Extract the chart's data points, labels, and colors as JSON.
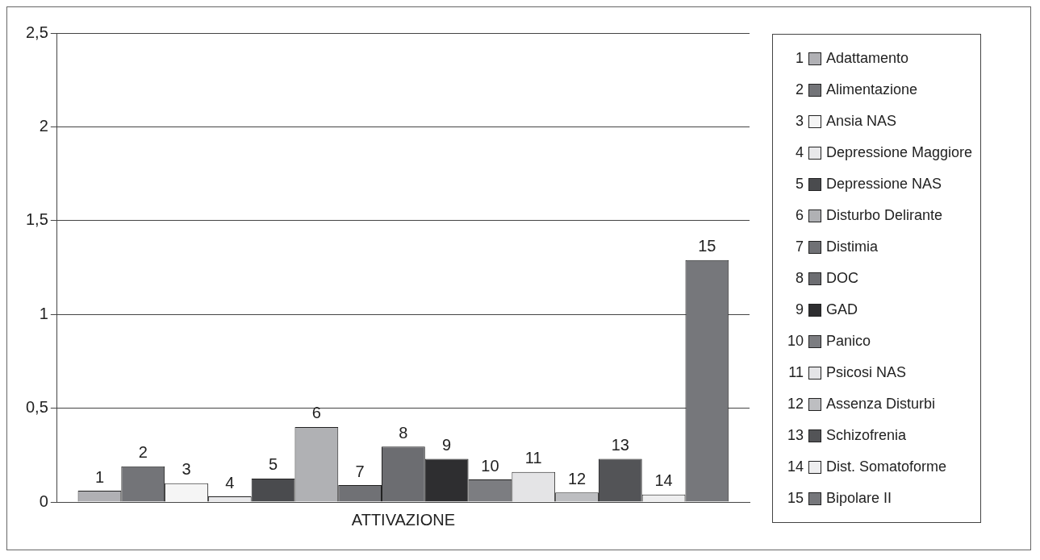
{
  "chart_data": {
    "type": "bar",
    "categories": [
      "ATTIVAZIONE"
    ],
    "ylim": [
      0,
      2.5
    ],
    "yticks": [
      0,
      {
        "value": 0.5,
        "label": "0,5"
      },
      1,
      {
        "value": 1.5,
        "label": "1,5"
      },
      2,
      {
        "value": 2.5,
        "label": "2,5"
      }
    ],
    "grid": "y",
    "legend": "right",
    "series": [
      {
        "name": "Adattamento",
        "color": "#b0b0b4",
        "values": [
          0.06
        ]
      },
      {
        "name": "Alimentazione",
        "color": "#737478",
        "values": [
          0.19
        ]
      },
      {
        "name": "Ansia NAS",
        "color": "#f5f5f5",
        "values": [
          0.1
        ]
      },
      {
        "name": "Depressione Maggiore",
        "color": "#e8e8ea",
        "values": [
          0.03
        ]
      },
      {
        "name": "Depressione NAS",
        "color": "#4a4b4e",
        "values": [
          0.125
        ]
      },
      {
        "name": "Disturbo Delirante",
        "color": "#b0b1b4",
        "values": [
          0.4
        ]
      },
      {
        "name": "Distimia",
        "color": "#707175",
        "values": [
          0.09
        ]
      },
      {
        "name": "DOC",
        "color": "#6c6d71",
        "values": [
          0.295
        ]
      },
      {
        "name": "GAD",
        "color": "#2e2e30",
        "values": [
          0.23
        ]
      },
      {
        "name": "Panico",
        "color": "#7c7d81",
        "values": [
          0.12
        ]
      },
      {
        "name": "Psicosi NAS",
        "color": "#e4e4e6",
        "values": [
          0.16
        ]
      },
      {
        "name": "Assenza Disturbi",
        "color": "#bdbec1",
        "values": [
          0.05
        ]
      },
      {
        "name": "Schizofrenia",
        "color": "#535457",
        "values": [
          0.23
        ]
      },
      {
        "name": "Dist. Somatoforme",
        "color": "#eeeeef",
        "values": [
          0.04
        ]
      },
      {
        "name": "Bipolare II",
        "color": "#76777b",
        "values": [
          1.29
        ]
      }
    ],
    "annotations": [
      "1",
      "2",
      "3",
      "4",
      "5",
      "6",
      "7",
      "8",
      "9",
      "10",
      "11",
      "12",
      "13",
      "14",
      "15"
    ]
  }
}
